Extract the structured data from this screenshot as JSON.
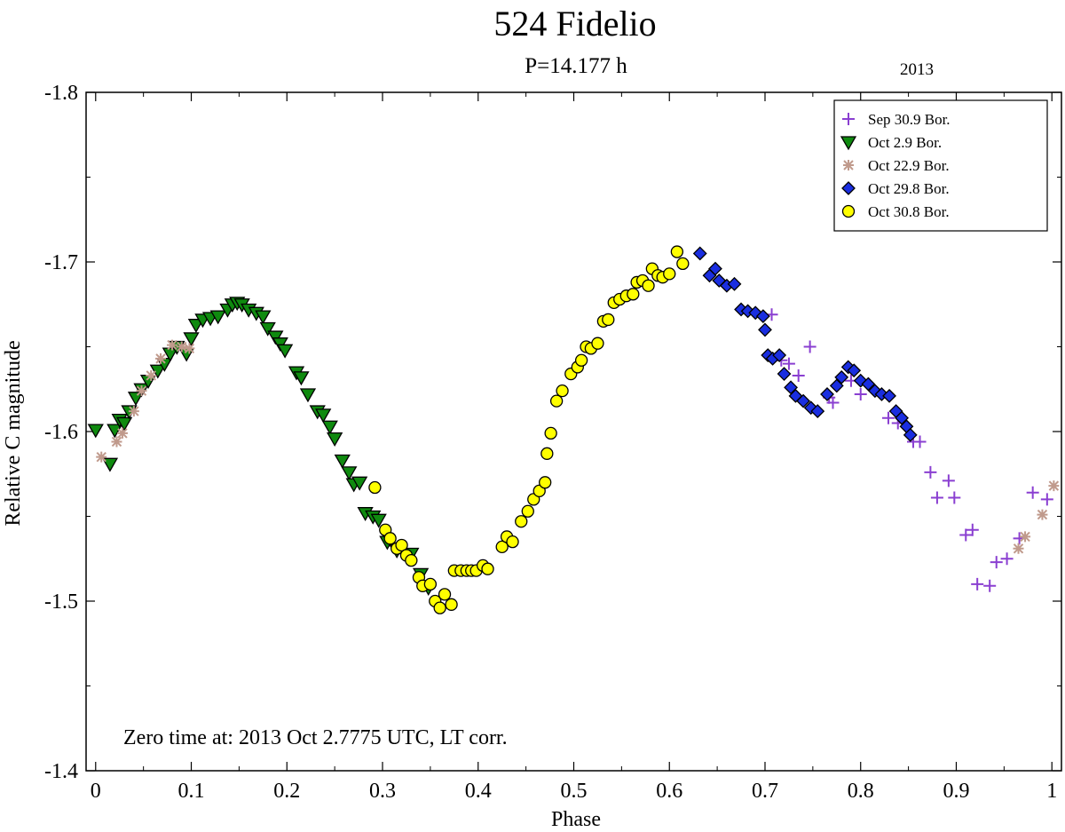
{
  "chart_data": {
    "type": "scatter",
    "title": "524 Fidelio",
    "subtitle": "P=14.177 h",
    "year_label": "2013",
    "xlabel": "Phase",
    "ylabel": "Relative C magnitude",
    "annotation": "Zero time at: 2013 Oct 2.7775 UTC, LT corr.",
    "xlim": [
      -0.01,
      1.01
    ],
    "ylim": [
      -1.8,
      -1.4
    ],
    "y_inverted": true,
    "x_ticks": [
      "0",
      "0.1",
      "0.2",
      "0.3",
      "0.4",
      "0.5",
      "0.6",
      "0.7",
      "0.8",
      "0.9",
      "1"
    ],
    "x_tick_values": [
      0,
      0.1,
      0.2,
      0.3,
      0.4,
      0.5,
      0.6,
      0.7,
      0.8,
      0.9,
      1.0
    ],
    "y_ticks": [
      "-1.8",
      "-1.7",
      "-1.6",
      "-1.5",
      "-1.4"
    ],
    "y_tick_values": [
      -1.8,
      -1.7,
      -1.6,
      -1.5,
      -1.4
    ],
    "legend_position": "top-right",
    "series": [
      {
        "name": "Sep 30.9 Bor.",
        "marker": "plus",
        "color": "#8a3fd1",
        "points": [
          [
            0.707,
            -1.669
          ],
          [
            0.717,
            -1.642
          ],
          [
            0.725,
            -1.64
          ],
          [
            0.735,
            -1.633
          ],
          [
            0.747,
            -1.65
          ],
          [
            0.767,
            -1.62
          ],
          [
            0.771,
            -1.617
          ],
          [
            0.79,
            -1.63
          ],
          [
            0.8,
            -1.622
          ],
          [
            0.829,
            -1.608
          ],
          [
            0.839,
            -1.605
          ],
          [
            0.855,
            -1.594
          ],
          [
            0.862,
            -1.594
          ],
          [
            0.873,
            -1.576
          ],
          [
            0.88,
            -1.561
          ],
          [
            0.892,
            -1.571
          ],
          [
            0.898,
            -1.561
          ],
          [
            0.91,
            -1.539
          ],
          [
            0.917,
            -1.542
          ],
          [
            0.922,
            -1.51
          ],
          [
            0.935,
            -1.509
          ],
          [
            0.942,
            -1.523
          ],
          [
            0.953,
            -1.525
          ],
          [
            0.966,
            -1.537
          ],
          [
            0.98,
            -1.564
          ],
          [
            0.995,
            -1.56
          ]
        ]
      },
      {
        "name": "Oct 2.9 Bor.",
        "marker": "triangle-down",
        "color": "#0f8a0f",
        "points": [
          [
            0.0,
            -1.601
          ],
          [
            0.015,
            -1.581
          ],
          [
            0.02,
            -1.601
          ],
          [
            0.025,
            -1.607
          ],
          [
            0.03,
            -1.605
          ],
          [
            0.035,
            -1.612
          ],
          [
            0.042,
            -1.62
          ],
          [
            0.048,
            -1.625
          ],
          [
            0.055,
            -1.63
          ],
          [
            0.065,
            -1.636
          ],
          [
            0.072,
            -1.64
          ],
          [
            0.078,
            -1.646
          ],
          [
            0.085,
            -1.65
          ],
          [
            0.095,
            -1.646
          ],
          [
            0.1,
            -1.655
          ],
          [
            0.105,
            -1.663
          ],
          [
            0.112,
            -1.666
          ],
          [
            0.12,
            -1.667
          ],
          [
            0.128,
            -1.668
          ],
          [
            0.138,
            -1.672
          ],
          [
            0.143,
            -1.675
          ],
          [
            0.148,
            -1.676
          ],
          [
            0.153,
            -1.675
          ],
          [
            0.16,
            -1.672
          ],
          [
            0.168,
            -1.67
          ],
          [
            0.175,
            -1.668
          ],
          [
            0.18,
            -1.661
          ],
          [
            0.188,
            -1.656
          ],
          [
            0.193,
            -1.652
          ],
          [
            0.198,
            -1.648
          ],
          [
            0.21,
            -1.635
          ],
          [
            0.215,
            -1.632
          ],
          [
            0.222,
            -1.622
          ],
          [
            0.232,
            -1.612
          ],
          [
            0.238,
            -1.61
          ],
          [
            0.245,
            -1.603
          ],
          [
            0.25,
            -1.596
          ],
          [
            0.258,
            -1.583
          ],
          [
            0.265,
            -1.576
          ],
          [
            0.27,
            -1.569
          ],
          [
            0.276,
            -1.57
          ],
          [
            0.282,
            -1.552
          ],
          [
            0.29,
            -1.55
          ],
          [
            0.296,
            -1.548
          ],
          [
            0.305,
            -1.535
          ],
          [
            0.315,
            -1.53
          ],
          [
            0.33,
            -1.528
          ],
          [
            0.34,
            -1.516
          ],
          [
            0.348,
            -1.508
          ]
        ]
      },
      {
        "name": "Oct 22.9 Bor.",
        "marker": "asterisk",
        "color": "#c09a8c",
        "points": [
          [
            0.006,
            -1.585
          ],
          [
            0.022,
            -1.594
          ],
          [
            0.028,
            -1.599
          ],
          [
            0.04,
            -1.612
          ],
          [
            0.048,
            -1.624
          ],
          [
            0.058,
            -1.633
          ],
          [
            0.068,
            -1.643
          ],
          [
            0.08,
            -1.651
          ],
          [
            0.09,
            -1.65
          ],
          [
            0.098,
            -1.649
          ],
          [
            0.965,
            -1.531
          ],
          [
            0.972,
            -1.538
          ],
          [
            0.99,
            -1.551
          ],
          [
            1.002,
            -1.568
          ]
        ]
      },
      {
        "name": "Oct 29.8 Bor.",
        "marker": "diamond",
        "color": "#1a2ee0",
        "points": [
          [
            0.632,
            -1.705
          ],
          [
            0.642,
            -1.692
          ],
          [
            0.648,
            -1.696
          ],
          [
            0.652,
            -1.689
          ],
          [
            0.66,
            -1.686
          ],
          [
            0.668,
            -1.687
          ],
          [
            0.675,
            -1.672
          ],
          [
            0.682,
            -1.671
          ],
          [
            0.69,
            -1.67
          ],
          [
            0.698,
            -1.668
          ],
          [
            0.7,
            -1.66
          ],
          [
            0.703,
            -1.645
          ],
          [
            0.708,
            -1.643
          ],
          [
            0.715,
            -1.645
          ],
          [
            0.72,
            -1.634
          ],
          [
            0.727,
            -1.626
          ],
          [
            0.732,
            -1.621
          ],
          [
            0.74,
            -1.618
          ],
          [
            0.748,
            -1.614
          ],
          [
            0.755,
            -1.612
          ],
          [
            0.765,
            -1.622
          ],
          [
            0.775,
            -1.627
          ],
          [
            0.78,
            -1.632
          ],
          [
            0.787,
            -1.638
          ],
          [
            0.793,
            -1.636
          ],
          [
            0.8,
            -1.63
          ],
          [
            0.808,
            -1.628
          ],
          [
            0.815,
            -1.624
          ],
          [
            0.822,
            -1.622
          ],
          [
            0.83,
            -1.621
          ],
          [
            0.837,
            -1.612
          ],
          [
            0.843,
            -1.608
          ],
          [
            0.848,
            -1.603
          ],
          [
            0.852,
            -1.598
          ]
        ]
      },
      {
        "name": "Oct 30.8 Bor.",
        "marker": "circle",
        "color": "#ffff00",
        "points": [
          [
            0.292,
            -1.567
          ],
          [
            0.303,
            -1.542
          ],
          [
            0.308,
            -1.537
          ],
          [
            0.315,
            -1.531
          ],
          [
            0.32,
            -1.533
          ],
          [
            0.325,
            -1.527
          ],
          [
            0.33,
            -1.524
          ],
          [
            0.338,
            -1.514
          ],
          [
            0.342,
            -1.509
          ],
          [
            0.35,
            -1.51
          ],
          [
            0.355,
            -1.5
          ],
          [
            0.36,
            -1.496
          ],
          [
            0.365,
            -1.504
          ],
          [
            0.372,
            -1.498
          ],
          [
            0.375,
            -1.518
          ],
          [
            0.382,
            -1.518
          ],
          [
            0.388,
            -1.518
          ],
          [
            0.393,
            -1.518
          ],
          [
            0.398,
            -1.518
          ],
          [
            0.405,
            -1.521
          ],
          [
            0.41,
            -1.519
          ],
          [
            0.425,
            -1.532
          ],
          [
            0.43,
            -1.538
          ],
          [
            0.436,
            -1.535
          ],
          [
            0.445,
            -1.547
          ],
          [
            0.452,
            -1.553
          ],
          [
            0.458,
            -1.56
          ],
          [
            0.464,
            -1.565
          ],
          [
            0.47,
            -1.57
          ],
          [
            0.472,
            -1.587
          ],
          [
            0.476,
            -1.599
          ],
          [
            0.482,
            -1.618
          ],
          [
            0.488,
            -1.624
          ],
          [
            0.497,
            -1.634
          ],
          [
            0.504,
            -1.638
          ],
          [
            0.508,
            -1.642
          ],
          [
            0.513,
            -1.65
          ],
          [
            0.518,
            -1.649
          ],
          [
            0.525,
            -1.652
          ],
          [
            0.531,
            -1.665
          ],
          [
            0.536,
            -1.666
          ],
          [
            0.542,
            -1.676
          ],
          [
            0.548,
            -1.678
          ],
          [
            0.555,
            -1.68
          ],
          [
            0.562,
            -1.681
          ],
          [
            0.566,
            -1.688
          ],
          [
            0.572,
            -1.689
          ],
          [
            0.578,
            -1.686
          ],
          [
            0.582,
            -1.696
          ],
          [
            0.588,
            -1.692
          ],
          [
            0.593,
            -1.691
          ],
          [
            0.6,
            -1.693
          ],
          [
            0.608,
            -1.706
          ],
          [
            0.614,
            -1.699
          ]
        ]
      }
    ]
  }
}
